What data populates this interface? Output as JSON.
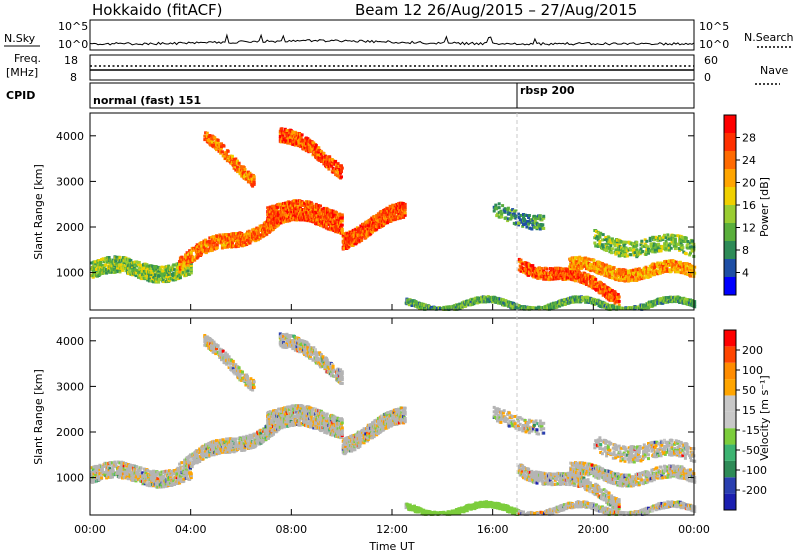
{
  "header": {
    "radar_title": "Hokkaido (fitACF)",
    "beam_title": "Beam 12  26/Aug/2015 – 27/Aug/2015"
  },
  "labels": {
    "nsky": "N.Sky",
    "nsearch": "N.Search",
    "freq": "Freq.",
    "freq_unit": "[MHz]",
    "nave": "Nave",
    "cpid": "CPID",
    "cpid_mode1": "normal (fast) 151",
    "cpid_mode2": "rbsp 200"
  },
  "noise_axis": {
    "left_top": "10^5",
    "left_bottom": "10^0",
    "right_top": "10^5",
    "right_bottom": "10^0"
  },
  "freq_axis": {
    "left_top": "18",
    "left_bottom": "8",
    "right_top": "60",
    "right_bottom": "0"
  },
  "colors": {
    "power_scale": [
      "#0000ff",
      "#1e4fa5",
      "#2e8b57",
      "#5aaf3c",
      "#9acd32",
      "#f0d000",
      "#ffa500",
      "#ff6a00",
      "#ff3000",
      "#ff0000"
    ],
    "velocity_scale": [
      "#1b1fb0",
      "#2a3fb0",
      "#2e8b57",
      "#3cb371",
      "#7ccd3c",
      "#c8c8c8",
      "#c8c8c8",
      "#ffa500",
      "#ff8c00",
      "#ff4500",
      "#ff0000"
    ],
    "ground_scatter": "#b4b4b4"
  },
  "chart_data": [
    {
      "type": "heatmap",
      "name": "power",
      "ylabel": "Slant Range [km]",
      "ylim": [
        180,
        4500
      ],
      "y_ticks": [
        "1000",
        "2000",
        "3000",
        "4000"
      ],
      "colorbar_label": "Power [dB]",
      "colorbar_ticks": [
        "4",
        "8",
        "12",
        "16",
        "20",
        "24",
        "28"
      ],
      "clim": [
        0,
        30
      ]
    },
    {
      "type": "heatmap",
      "name": "velocity",
      "ylabel": "Slant Range [km]",
      "ylim": [
        180,
        4500
      ],
      "y_ticks": [
        "1000",
        "2000",
        "3000",
        "4000"
      ],
      "colorbar_label": "Velocity [m s⁻¹]",
      "colorbar_ticks": [
        "-200",
        "-100",
        "-50",
        "-15",
        "15",
        "50",
        "100",
        "200"
      ],
      "xlabel": "Time UT",
      "x_ticks": [
        "00:00",
        "04:00",
        "08:00",
        "12:00",
        "16:00",
        "20:00",
        "00:00"
      ],
      "xlim": [
        "00:00",
        "24:00"
      ]
    }
  ]
}
